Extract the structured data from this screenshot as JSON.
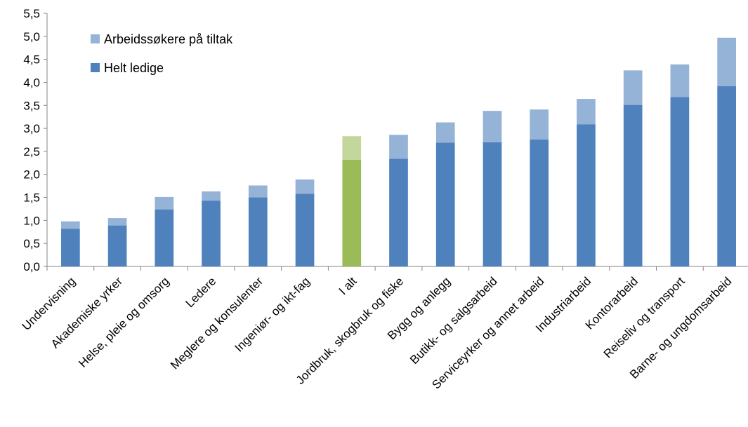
{
  "chart_data": {
    "type": "bar",
    "stacked": true,
    "categories": [
      "Undervisning",
      "Akademiske yrker",
      "Helse, pleie og omsorg",
      "Ledere",
      "Meglere og konsulenter",
      "Ingeniør- og ikt-fag",
      "I alt",
      "Jordbruk, skogbruk og fiske",
      "Bygg og anlegg",
      "Butikk- og salgsarbeid",
      "Serviceyrker og annet arbeid",
      "Industriarbeid",
      "Kontorarbeid",
      "Reiseliv og transport",
      "Barne- og ungdomsarbeid"
    ],
    "series": [
      {
        "name": "Helt ledige",
        "color": "#4F81BD",
        "values": [
          0.82,
          0.89,
          1.24,
          1.43,
          1.5,
          1.58,
          2.32,
          2.34,
          2.69,
          2.7,
          2.76,
          3.09,
          3.51,
          3.68,
          3.92
        ]
      },
      {
        "name": "Arbeidssøkere på tiltak",
        "color": "#95B3D7",
        "values": [
          0.16,
          0.16,
          0.27,
          0.2,
          0.26,
          0.31,
          0.51,
          0.52,
          0.44,
          0.68,
          0.65,
          0.55,
          0.75,
          0.71,
          1.05
        ]
      }
    ],
    "highlight": {
      "category": "I alt",
      "colors": [
        "#9BBB59",
        "#C3D69B"
      ]
    },
    "ylim": [
      0,
      5.5
    ],
    "yticks": [
      "0,0",
      "0,5",
      "1,0",
      "1,5",
      "2,0",
      "2,5",
      "3,0",
      "3,5",
      "4,0",
      "4,5",
      "5,0",
      "5,5"
    ],
    "grid": false,
    "legend": {
      "placement": "top-left",
      "entries": [
        "Arbeidssøkere på tiltak",
        "Helt ledige"
      ]
    }
  }
}
